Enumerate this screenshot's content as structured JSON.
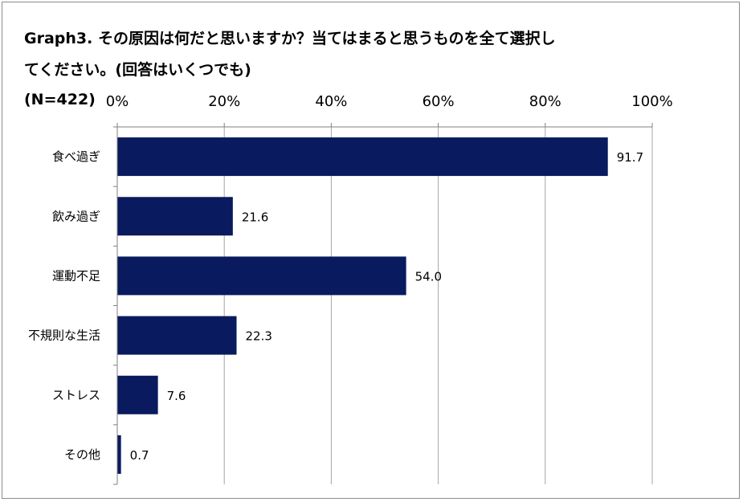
{
  "chart_data": {
    "type": "bar",
    "orientation": "horizontal",
    "title_line1": "Graph3. その原因は何だと思いますか？当てはまると思うものを全て選択し",
    "title_line2": "てください。(回答はいくつでも)",
    "sample_label": "(N=422)",
    "categories": [
      "食べ過ぎ",
      "飲み過ぎ",
      "運動不足",
      "不規則な生活",
      "ストレス",
      "その他"
    ],
    "values": [
      91.7,
      21.6,
      54.0,
      22.3,
      7.6,
      0.7
    ],
    "value_labels": [
      "91.7",
      "21.6",
      "54.0",
      "22.3",
      "7.6",
      "0.7"
    ],
    "xlim": [
      0,
      100
    ],
    "x_ticks": [
      "0%",
      "20%",
      "40%",
      "60%",
      "80%",
      "100%"
    ],
    "x_tick_values": [
      0,
      20,
      40,
      60,
      80,
      100
    ],
    "xaxis_position": "top",
    "grid": true,
    "legend": "none",
    "bar_color": "#0a1a5e",
    "grid_color": "#a6a6a6"
  }
}
